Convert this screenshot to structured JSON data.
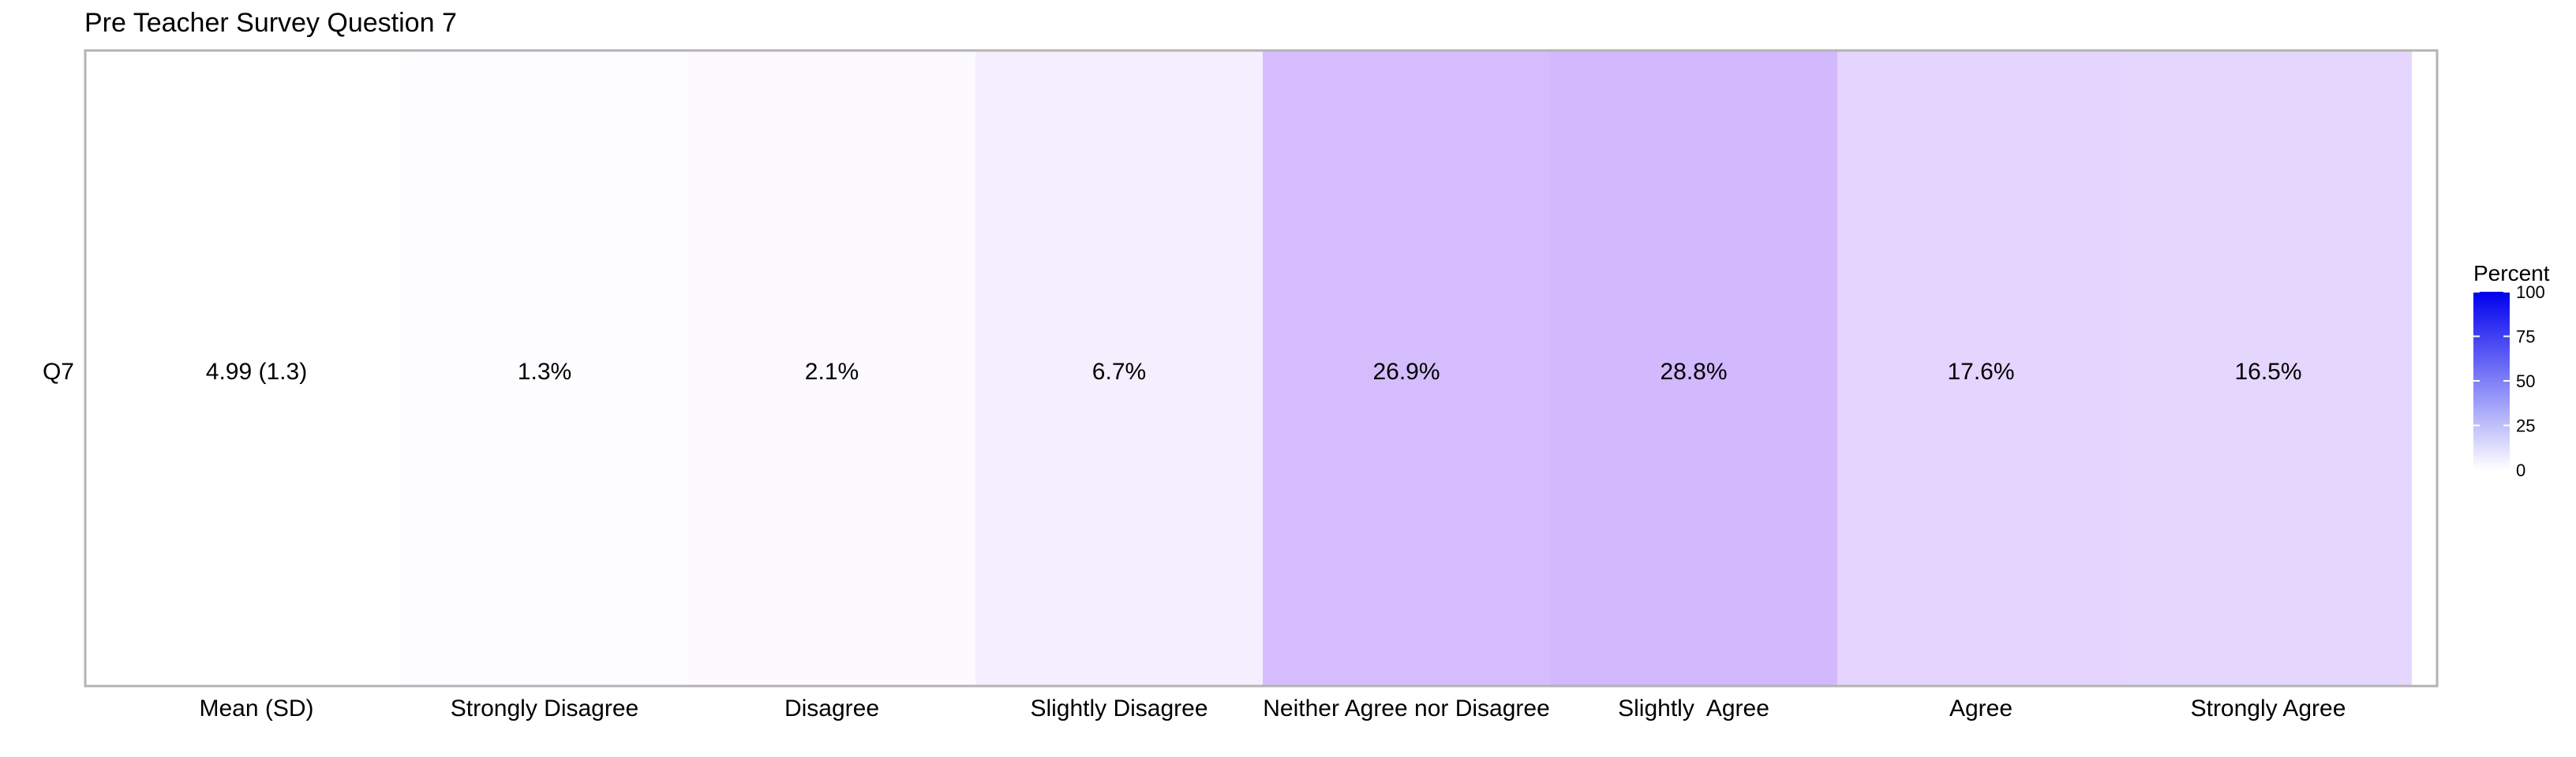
{
  "chart_data": {
    "type": "heatmap",
    "title": "Pre Teacher Survey Question 7",
    "xlabel": "",
    "ylabel": "",
    "rows": [
      "Q7"
    ],
    "categories": [
      "Mean (SD)",
      "Strongly Disagree",
      "Disagree",
      "Slightly Disagree",
      "Neither Agree nor Disagree",
      "Slightly  Agree",
      "Agree",
      "Strongly Agree"
    ],
    "cells": [
      {
        "label": "4.99 (1.3)",
        "value": null
      },
      {
        "label": "1.3%",
        "value": 1.3
      },
      {
        "label": "2.1%",
        "value": 2.1
      },
      {
        "label": "6.7%",
        "value": 6.7
      },
      {
        "label": "26.9%",
        "value": 26.9
      },
      {
        "label": "28.8%",
        "value": 28.8
      },
      {
        "label": "17.6%",
        "value": 17.6
      },
      {
        "label": "16.5%",
        "value": 16.5
      }
    ],
    "legend": {
      "title": "Percent",
      "ticks": [
        0,
        25,
        50,
        75,
        100
      ],
      "range": [
        0,
        100
      ],
      "low_color": "#ffffff",
      "high_color": "#0000ee",
      "placement": "right"
    },
    "grid": false
  }
}
